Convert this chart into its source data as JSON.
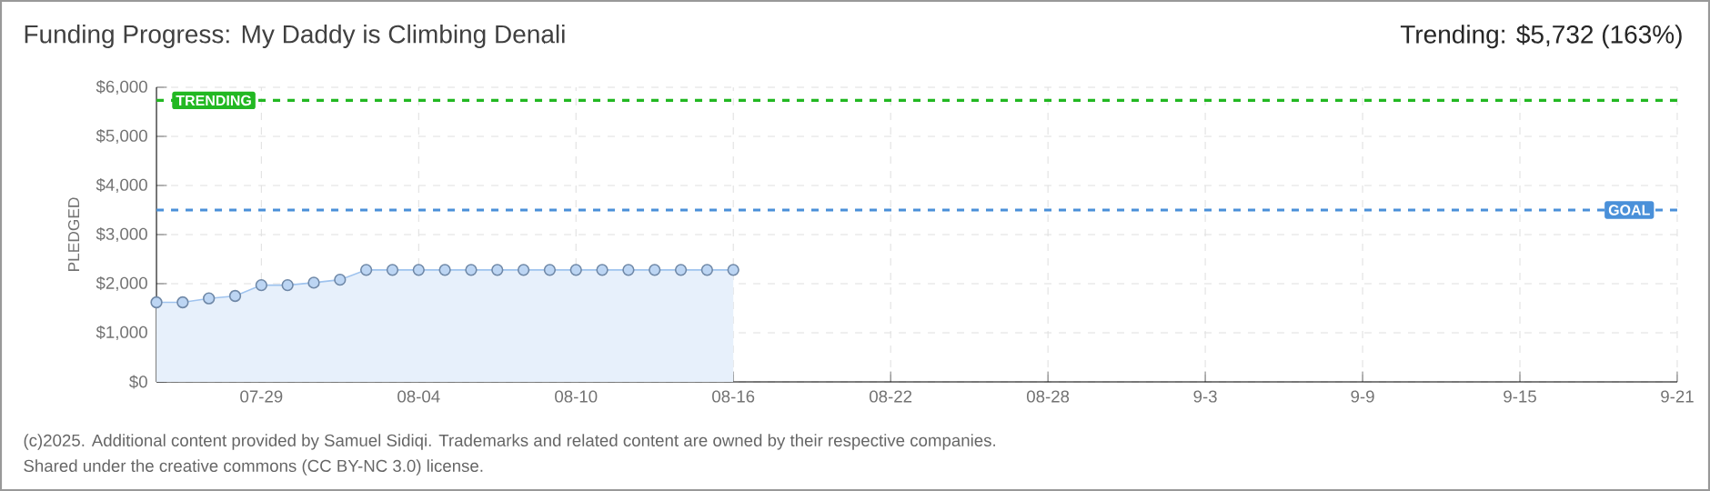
{
  "chart_data": {
    "type": "area",
    "title": "Funding Progress: My Daddy is Climbing Denali",
    "subtitle": "Trending: $5,732 (163%)",
    "ylabel": "PLEDGED",
    "x": [
      "2025-07-25",
      "2025-07-26",
      "2025-07-27",
      "2025-07-28",
      "2025-07-29",
      "2025-07-30",
      "2025-07-31",
      "2025-08-01",
      "2025-08-02",
      "2025-08-03",
      "2025-08-04",
      "2025-08-05",
      "2025-08-06",
      "2025-08-07",
      "2025-08-08",
      "2025-08-09",
      "2025-08-10",
      "2025-08-11",
      "2025-08-12",
      "2025-08-13",
      "2025-08-14",
      "2025-08-15",
      "2025-08-16"
    ],
    "series": [
      {
        "color": "#9fc3ee",
        "values": [
          1620,
          1620,
          1700,
          1750,
          1970,
          1970,
          2020,
          2080,
          2280,
          2280,
          2280,
          2280,
          2280,
          2280,
          2280,
          2280,
          2280,
          2280,
          2280,
          2280,
          2280,
          2280,
          2280
        ]
      }
    ],
    "marker": "circle",
    "xlim": [
      "2025-07-25",
      "2025-09-21"
    ],
    "xticks": [
      {
        "value": "2025-07-29",
        "label": "07-29"
      },
      {
        "value": "2025-08-04",
        "label": "08-04"
      },
      {
        "value": "2025-08-10",
        "label": "08-10"
      },
      {
        "value": "2025-08-16",
        "label": "08-16"
      },
      {
        "value": "2025-08-22",
        "label": "08-22"
      },
      {
        "value": "2025-08-28",
        "label": "08-28"
      },
      {
        "value": "2025-09-03",
        "label": "9-3"
      },
      {
        "value": "2025-09-09",
        "label": "9-9"
      },
      {
        "value": "2025-09-15",
        "label": "9-15"
      },
      {
        "value": "2025-09-21",
        "label": "9-21"
      }
    ],
    "ylim": [
      0,
      6000
    ],
    "yticks": [
      {
        "value": 0,
        "label": "$0"
      },
      {
        "value": 1000,
        "label": "$1,000"
      },
      {
        "value": 2000,
        "label": "$2,000"
      },
      {
        "value": 3000,
        "label": "$3,000"
      },
      {
        "value": 4000,
        "label": "$4,000"
      },
      {
        "value": 5000,
        "label": "$5,000"
      },
      {
        "value": 6000,
        "label": "$6,000"
      }
    ],
    "grid": true,
    "ref_lines": [
      {
        "axis": "y",
        "value": 5732,
        "label": "TRENDING",
        "color": "#22b822",
        "line_style": "dashed"
      },
      {
        "axis": "y",
        "value": 3500,
        "label": "GOAL",
        "color": "#4a90d9",
        "line_style": "dashed"
      }
    ],
    "annotations": [
      "(c)2025. Additional content provided by Samuel Sidiqi. Trademarks and related content are owned by their respective companies.",
      "Shared under the creative commons (CC BY-NC 3.0) license."
    ]
  }
}
